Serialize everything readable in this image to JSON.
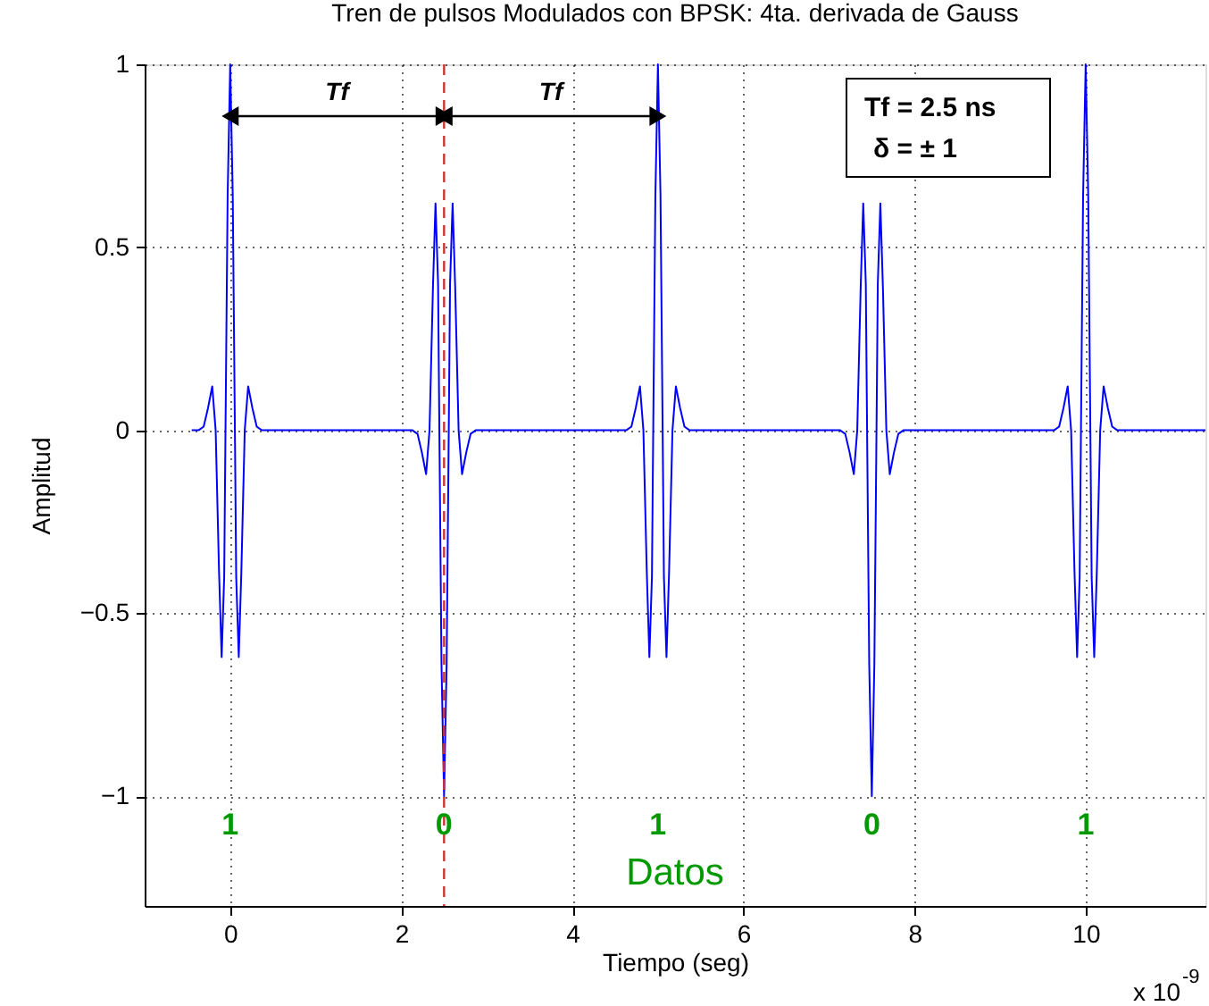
{
  "chart_data": {
    "type": "line",
    "title": "Tren de pulsos Modulados con BPSK: 4ta. derivada de Gauss",
    "xlabel": "Tiempo (seg)",
    "ylabel": "Amplitud",
    "x": [
      -0.45,
      -0.37,
      -0.31,
      -0.26,
      -0.21,
      -0.17,
      -0.13,
      -0.1,
      -0.07,
      -0.055,
      -0.03,
      0,
      0.03,
      0.055,
      0.07,
      0.1,
      0.13,
      0.17,
      0.21,
      0.26,
      0.31,
      0.37,
      2.13,
      2.19,
      2.24,
      2.29,
      2.33,
      2.37,
      2.4,
      2.43,
      2.445,
      2.47,
      2.5,
      2.53,
      2.555,
      2.57,
      2.6,
      2.63,
      2.67,
      2.71,
      2.76,
      2.81,
      2.87,
      4.63,
      4.69,
      4.74,
      4.79,
      4.83,
      4.87,
      4.9,
      4.93,
      4.945,
      4.97,
      5,
      5.03,
      5.055,
      5.07,
      5.1,
      5.13,
      5.17,
      5.21,
      5.26,
      5.31,
      5.37,
      7.13,
      7.19,
      7.24,
      7.29,
      7.33,
      7.37,
      7.4,
      7.43,
      7.445,
      7.47,
      7.5,
      7.53,
      7.555,
      7.57,
      7.6,
      7.63,
      7.67,
      7.71,
      7.76,
      7.81,
      7.87,
      9.63,
      9.69,
      9.74,
      9.79,
      9.83,
      9.87,
      9.9,
      9.93,
      9.945,
      9.97,
      10,
      10.03,
      10.055,
      10.07,
      10.1,
      10.13,
      10.17,
      10.21,
      10.26,
      10.31,
      10.37,
      11.4
    ],
    "series": [
      {
        "color": "#0000ff",
        "values": [
          0,
          0,
          0.01,
          0.06,
          0.12,
          0,
          -0.39,
          -0.62,
          -0.4,
          0,
          0.64,
          1,
          0.64,
          0,
          -0.4,
          -0.62,
          -0.39,
          0,
          0.12,
          0.06,
          0.01,
          0,
          0,
          -0.01,
          -0.06,
          -0.12,
          0,
          0.39,
          0.62,
          0.4,
          0,
          -0.64,
          -1,
          -0.64,
          0,
          0.4,
          0.62,
          0.39,
          0,
          -0.12,
          -0.06,
          -0.01,
          0,
          0,
          0.01,
          0.06,
          0.12,
          0,
          -0.39,
          -0.62,
          -0.4,
          0,
          0.64,
          1,
          0.64,
          0,
          -0.4,
          -0.62,
          -0.39,
          0,
          0.12,
          0.06,
          0.01,
          0,
          0,
          -0.01,
          -0.06,
          -0.12,
          0,
          0.39,
          0.62,
          0.4,
          0,
          -0.64,
          -1,
          -0.64,
          0,
          0.4,
          0.62,
          0.39,
          0,
          -0.12,
          -0.06,
          -0.01,
          0,
          0,
          0.01,
          0.06,
          0.12,
          0,
          -0.39,
          -0.62,
          -0.4,
          0,
          0.64,
          1,
          0.64,
          0,
          -0.4,
          -0.62,
          -0.39,
          0,
          0.12,
          0.06,
          0.01,
          0,
          0
        ]
      }
    ],
    "xlim": [
      -1,
      11.4
    ],
    "ylim": [
      -1.3,
      1
    ],
    "xticks": [
      0,
      2,
      4,
      6,
      8,
      10
    ],
    "yticks": [
      -1,
      -0.5,
      0,
      0.5,
      1
    ],
    "grid": true,
    "line_style": "solid",
    "marker": "none",
    "ref_lines": [
      {
        "axis": "x",
        "value": 2.5,
        "color": "#cc3333",
        "line_style": "dashed"
      }
    ],
    "annotations": [
      "Tf",
      "Tf",
      "Tf = 2.5 ns",
      "δ = ± 1",
      "1",
      "0",
      "1",
      "0",
      "1",
      "Datos",
      "x 10$^{-9}$"
    ]
  }
}
